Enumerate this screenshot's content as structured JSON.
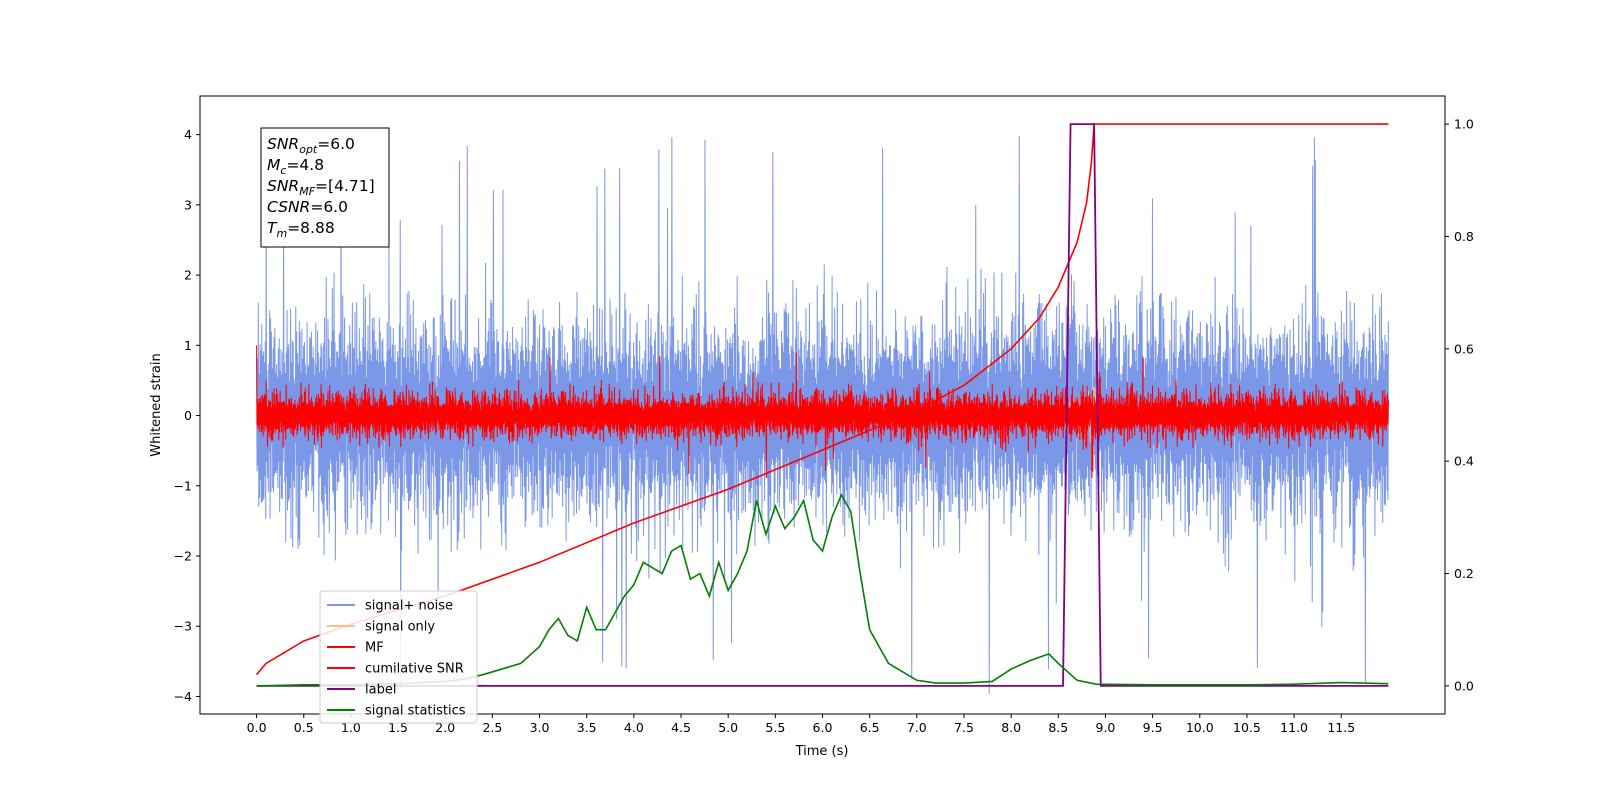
{
  "chart_data": {
    "type": "line",
    "xlabel": "Time (s)",
    "ylabel": "Whitened strain",
    "xlim": [
      -0.6,
      12.6
    ],
    "ylim": [
      -4.25,
      4.55
    ],
    "ylim_right": [
      -0.05,
      1.05
    ],
    "x_ticks": [
      "0.0",
      "0.5",
      "1.0",
      "1.5",
      "2.0",
      "2.5",
      "3.0",
      "3.5",
      "4.0",
      "4.5",
      "5.0",
      "5.5",
      "6.0",
      "6.5",
      "7.0",
      "7.5",
      "8.0",
      "8.5",
      "9.0",
      "9.5",
      "10.0",
      "10.5",
      "11.0",
      "11.5"
    ],
    "y_ticks_left": [
      "4",
      "3",
      "2",
      "1",
      "0",
      "−1",
      "−2",
      "−3",
      "−4"
    ],
    "y_ticks_right": [
      "1.0",
      "0.8",
      "0.6",
      "0.4",
      "0.2",
      "0.0"
    ],
    "grid": false,
    "legend_position": "lower-left",
    "annotation": {
      "lines": [
        {
          "base": "SNR",
          "sub": "opt",
          "value": "=6.0"
        },
        {
          "base": "M",
          "sub": "c",
          "value": "=4.8"
        },
        {
          "base": "SNR",
          "sub": "MF",
          "value": "=[4.71]"
        },
        {
          "base": "CSNR",
          "sub": "",
          "value": "=6.0"
        },
        {
          "base": "T",
          "sub": "m",
          "value": "=8.88"
        }
      ]
    },
    "series": [
      {
        "name": "signal+ noise",
        "color": "#7b97e8",
        "axis": "left",
        "x_range": [
          0.0,
          12.0
        ],
        "amplitude_typical": 1.0,
        "amplitude_peak": 4.15
      },
      {
        "name": "signal only",
        "color": "#ffbf80",
        "axis": "left",
        "x_range": [
          0.0,
          12.0
        ],
        "amplitude_peak": 0.45
      },
      {
        "name": "MF",
        "color": "#ff0000",
        "axis": "left",
        "x_range": [
          0.0,
          12.0
        ],
        "amplitude_typical": 0.3,
        "amplitude_peak": 1.0
      },
      {
        "name": "cumilative SNR",
        "color": "#ff0000",
        "axis": "right",
        "x": [
          0.0,
          0.1,
          0.5,
          1.0,
          2.0,
          3.0,
          4.0,
          5.0,
          6.0,
          6.5,
          7.0,
          7.5,
          8.0,
          8.3,
          8.5,
          8.7,
          8.8,
          8.85,
          8.88,
          9.0,
          12.0
        ],
        "values": [
          0.02,
          0.04,
          0.08,
          0.11,
          0.16,
          0.22,
          0.29,
          0.35,
          0.42,
          0.455,
          0.49,
          0.535,
          0.6,
          0.655,
          0.71,
          0.79,
          0.86,
          0.93,
          1.0,
          1.0,
          1.0
        ]
      },
      {
        "name": "label",
        "color": "#800080",
        "axis": "right",
        "x": [
          0.0,
          8.55,
          8.63,
          8.88,
          8.95,
          12.0
        ],
        "values": [
          0.0,
          0.0,
          1.0,
          1.0,
          0.0,
          0.0
        ]
      },
      {
        "name": "signal statistics",
        "color": "#008000",
        "axis": "right",
        "x": [
          0.0,
          0.5,
          1.0,
          1.5,
          2.0,
          2.2,
          2.4,
          2.6,
          2.8,
          3.0,
          3.1,
          3.2,
          3.3,
          3.4,
          3.5,
          3.6,
          3.7,
          3.8,
          3.9,
          4.0,
          4.1,
          4.2,
          4.3,
          4.4,
          4.5,
          4.6,
          4.7,
          4.8,
          4.9,
          5.0,
          5.1,
          5.2,
          5.3,
          5.4,
          5.5,
          5.6,
          5.7,
          5.8,
          5.9,
          6.0,
          6.1,
          6.2,
          6.3,
          6.4,
          6.5,
          6.6,
          6.7,
          6.8,
          6.9,
          7.0,
          7.2,
          7.5,
          7.8,
          8.0,
          8.2,
          8.4,
          8.5,
          8.7,
          8.9,
          9.5,
          10.0,
          10.5,
          11.0,
          11.5,
          12.0
        ],
        "values": [
          0.0,
          0.002,
          0.002,
          0.004,
          0.008,
          0.012,
          0.02,
          0.03,
          0.04,
          0.07,
          0.1,
          0.12,
          0.09,
          0.08,
          0.14,
          0.1,
          0.1,
          0.13,
          0.16,
          0.18,
          0.22,
          0.21,
          0.2,
          0.24,
          0.25,
          0.19,
          0.2,
          0.16,
          0.22,
          0.17,
          0.2,
          0.24,
          0.33,
          0.27,
          0.32,
          0.28,
          0.3,
          0.33,
          0.26,
          0.24,
          0.3,
          0.34,
          0.31,
          0.2,
          0.1,
          0.07,
          0.04,
          0.03,
          0.02,
          0.01,
          0.005,
          0.005,
          0.008,
          0.03,
          0.045,
          0.057,
          0.04,
          0.01,
          0.003,
          0.002,
          0.002,
          0.002,
          0.003,
          0.006,
          0.004
        ]
      }
    ]
  }
}
